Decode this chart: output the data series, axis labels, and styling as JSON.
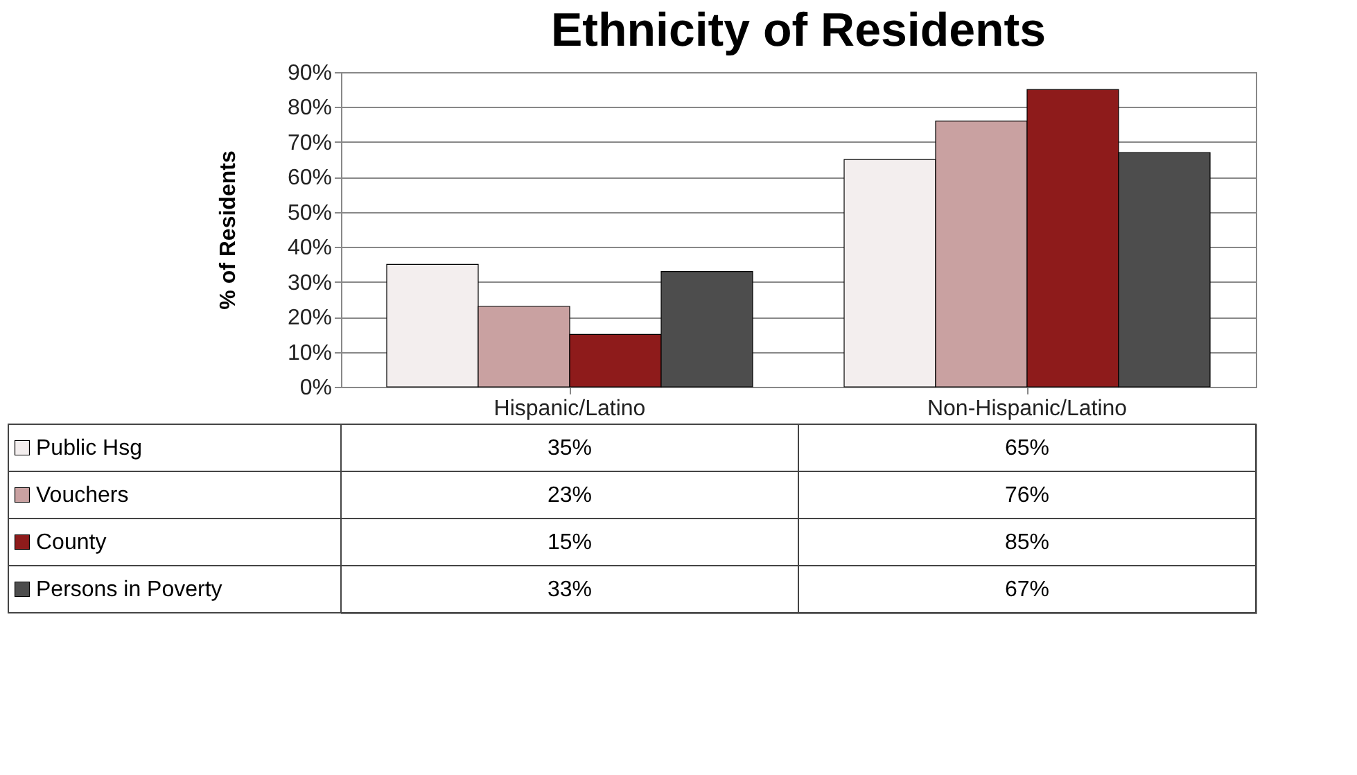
{
  "chart_data": {
    "type": "bar",
    "title": "Ethnicity of Residents",
    "ylabel": "% of Residents",
    "categories": [
      "Hispanic/Latino",
      "Non-Hispanic/Latino"
    ],
    "series": [
      {
        "name": "Public Hsg",
        "color": "#f3eeee",
        "values": [
          35,
          65
        ],
        "value_labels": [
          "35%",
          "65%"
        ]
      },
      {
        "name": "Vouchers",
        "color": "#c9a1a1",
        "values": [
          23,
          76
        ],
        "value_labels": [
          "23%",
          "76%"
        ]
      },
      {
        "name": "County",
        "color": "#8e1b1b",
        "values": [
          15,
          85
        ],
        "value_labels": [
          "15%",
          "85%"
        ]
      },
      {
        "name": "Persons in Poverty",
        "color": "#4d4d4d",
        "values": [
          33,
          67
        ],
        "value_labels": [
          "33%",
          "67%"
        ]
      }
    ],
    "ylim": [
      0,
      90
    ],
    "yticks": [
      {
        "value": 0,
        "label": "0%"
      },
      {
        "value": 10,
        "label": "10%"
      },
      {
        "value": 20,
        "label": "20%"
      },
      {
        "value": 30,
        "label": "30%"
      },
      {
        "value": 40,
        "label": "40%"
      },
      {
        "value": 50,
        "label": "50%"
      },
      {
        "value": 60,
        "label": "60%"
      },
      {
        "value": 70,
        "label": "70%"
      },
      {
        "value": 80,
        "label": "80%"
      },
      {
        "value": 90,
        "label": "90%"
      }
    ],
    "grid": "y",
    "legend": "bottom left"
  }
}
